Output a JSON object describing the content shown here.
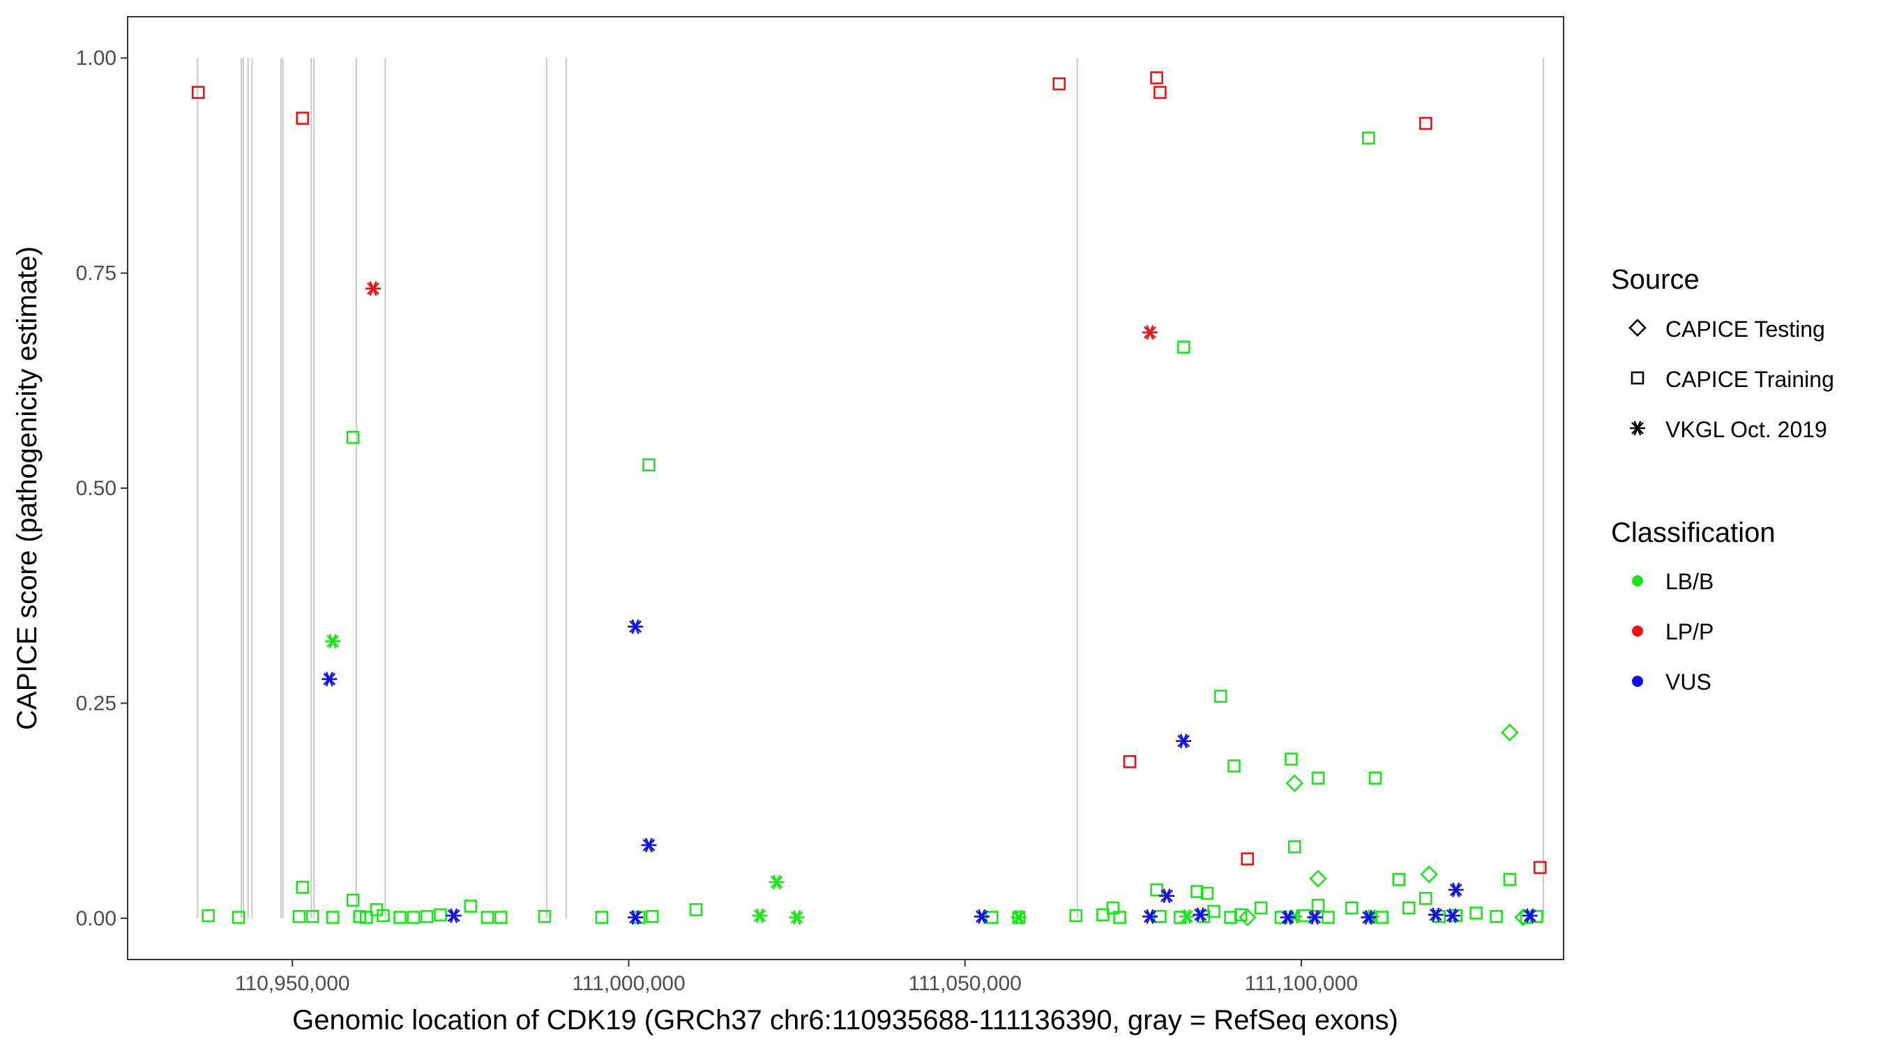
{
  "chart_data": {
    "type": "scatter",
    "xlabel": "Genomic location of CDK19 (GRCh37 chr6:110935688-111136390, gray = RefSeq exons)",
    "ylabel": "CAPICE score (pathogenicity estimate)",
    "xlim": [
      110925500,
      111139000
    ],
    "ylim": [
      -0.048,
      1.048
    ],
    "x_ticks": [
      110950000,
      111000000,
      111050000,
      111100000
    ],
    "x_tick_labels": [
      "110,950,000",
      "111,000,000",
      "111,050,000",
      "111,100,000"
    ],
    "y_ticks": [
      0,
      0.25,
      0.5,
      0.75,
      1.0
    ],
    "y_tick_labels": [
      "0.00",
      "0.25",
      "0.50",
      "0.75",
      "1.00"
    ],
    "grid": false,
    "exons_gray": [
      110935900,
      110942400,
      110942700,
      110943400,
      110944000,
      110948300,
      110948600,
      110952800,
      110953200,
      110959500,
      110963800,
      110987800,
      110990700,
      111066700,
      111136000
    ],
    "colors": {
      "LB/B": "#19e619",
      "LP/P": "#ee1111",
      "VUS": "#1111e6"
    },
    "legend": {
      "position": "right",
      "source_title": "Source",
      "source_items": [
        {
          "label": "CAPICE Testing",
          "shape": "diamond"
        },
        {
          "label": "CAPICE Training",
          "shape": "square"
        },
        {
          "label": "VKGL Oct. 2019",
          "shape": "asterisk"
        }
      ],
      "class_title": "Classification",
      "class_items": [
        {
          "label": "LB/B",
          "color": "#19e619"
        },
        {
          "label": "LP/P",
          "color": "#ee1111"
        },
        {
          "label": "VUS",
          "color": "#1111e6"
        }
      ]
    },
    "series": [
      {
        "name": "CAPICE Training LP/P",
        "shape": "square",
        "cls": "LP/P",
        "x": [
          110936000,
          110951500,
          111064000,
          111078500,
          111079000,
          111118500,
          111074500,
          111092000,
          111135500
        ],
        "y": [
          0.96,
          0.93,
          0.97,
          0.977,
          0.96,
          0.924,
          0.182,
          0.069,
          0.059
        ]
      },
      {
        "name": "VKGL LP/P",
        "shape": "asterisk",
        "cls": "LP/P",
        "x": [
          110962000,
          111077500
        ],
        "y": [
          0.732,
          0.681
        ]
      },
      {
        "name": "CAPICE Training LB/B",
        "shape": "square",
        "cls": "LB/B",
        "x": [
          111110000,
          111082500,
          110959000,
          111003000,
          111088000,
          111098500,
          111090000,
          111102500,
          111111000,
          111099000,
          110951500,
          111078500,
          111114500,
          111131000,
          110959000,
          111118500,
          111086000,
          111084500,
          111072000,
          111102500,
          111094000,
          111087000,
          110976500,
          110937500,
          110942000,
          110951000,
          110953000,
          110956000,
          110960000,
          110961000,
          110962500,
          110963500,
          110966000,
          110968000,
          110970000,
          110972000,
          110979000,
          110981000,
          110987500,
          110996000,
          111001500,
          111003500,
          111010000,
          111054000,
          111058000,
          111066500,
          111070500,
          111073000,
          111079000,
          111082000,
          111085500,
          111089500,
          111091000,
          111097000,
          111100500,
          111104000,
          111107500,
          111112000,
          111116000,
          111120500,
          111123000,
          111126000,
          111129000,
          111133500,
          111135000
        ],
        "y": [
          0.907,
          0.664,
          0.559,
          0.527,
          0.258,
          0.185,
          0.177,
          0.163,
          0.163,
          0.083,
          0.036,
          0.033,
          0.045,
          0.045,
          0.021,
          0.023,
          0.029,
          0.031,
          0.012,
          0.015,
          0.012,
          0.008,
          0.014,
          0.003,
          0.001,
          0.002,
          0.002,
          0.001,
          0.002,
          0.001,
          0.01,
          0.003,
          0.001,
          0.001,
          0.002,
          0.004,
          0.001,
          0.001,
          0.002,
          0.001,
          0.001,
          0.002,
          0.01,
          0.001,
          0.001,
          0.003,
          0.004,
          0.001,
          0.002,
          0.001,
          0.002,
          0.001,
          0.004,
          0.001,
          0.003,
          0.001,
          0.012,
          0.001,
          0.012,
          0.002,
          0.003,
          0.006,
          0.002,
          0.001,
          0.002
        ]
      },
      {
        "name": "VKGL LB/B",
        "shape": "asterisk",
        "cls": "LB/B",
        "x": [
          110956000,
          111022000,
          111019500,
          111025000,
          111058000,
          111083000,
          111099000,
          111110500
        ],
        "y": [
          0.322,
          0.042,
          0.003,
          0.001,
          0.001,
          0.002,
          0.002,
          0.002
        ]
      },
      {
        "name": "CAPICE Testing LB/B",
        "shape": "diamond",
        "cls": "LB/B",
        "x": [
          111131000,
          111099000,
          111102500,
          111119000,
          111092000,
          111133000
        ],
        "y": [
          0.216,
          0.157,
          0.046,
          0.051,
          0.001,
          0.001
        ]
      },
      {
        "name": "VKGL VUS",
        "shape": "asterisk",
        "cls": "VUS",
        "x": [
          111001000,
          110955500,
          111003000,
          111082500,
          111080000,
          111123000,
          110974000,
          111001000,
          111052500,
          111077500,
          111085000,
          111098000,
          111102000,
          111110000,
          111120000,
          111122500,
          111134000
        ],
        "y": [
          0.339,
          0.278,
          0.085,
          0.206,
          0.026,
          0.033,
          0.003,
          0.001,
          0.002,
          0.002,
          0.004,
          0.001,
          0.001,
          0.001,
          0.004,
          0.003,
          0.003
        ]
      }
    ]
  }
}
